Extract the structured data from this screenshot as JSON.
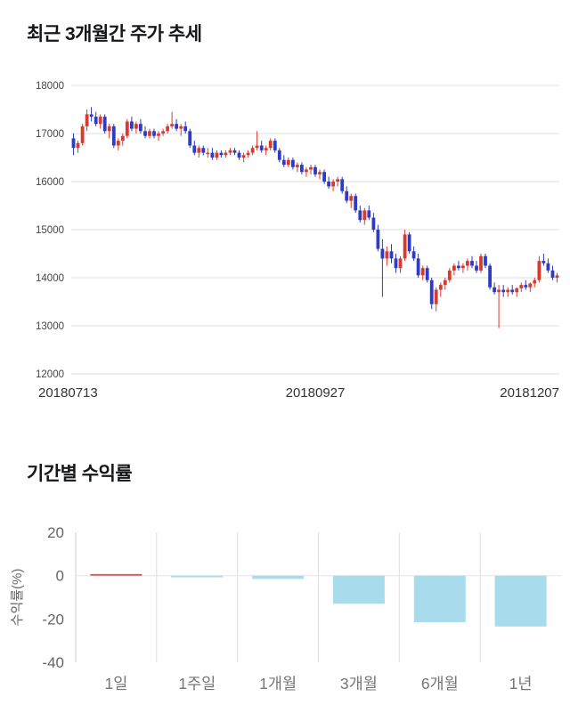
{
  "chart_data": [
    {
      "type": "candlestick",
      "title": "최근 3개월간 주가 추세",
      "ylim": [
        12000,
        18000
      ],
      "y_ticks": [
        18000,
        17000,
        16000,
        15000,
        14000,
        13000,
        12000
      ],
      "x_tick_labels": [
        "20180713",
        "20180927",
        "20181207"
      ],
      "up_color": "#d93a2e",
      "down_color": "#2d3bc5",
      "grid_color": "#dddddd",
      "candles_ohlc": [
        [
          16900,
          17000,
          16550,
          16700
        ],
        [
          16700,
          16850,
          16600,
          16800
        ],
        [
          16800,
          17200,
          16750,
          17150
        ],
        [
          17150,
          17500,
          17050,
          17400
        ],
        [
          17400,
          17550,
          17250,
          17350
        ],
        [
          17350,
          17450,
          17150,
          17200
        ],
        [
          17200,
          17400,
          17100,
          17350
        ],
        [
          17350,
          17400,
          17000,
          17050
        ],
        [
          17050,
          17200,
          16900,
          17150
        ],
        [
          17150,
          17200,
          16700,
          16750
        ],
        [
          16750,
          16900,
          16650,
          16850
        ],
        [
          16850,
          17000,
          16750,
          16950
        ],
        [
          16950,
          17300,
          16900,
          17250
        ],
        [
          17250,
          17350,
          17050,
          17100
        ],
        [
          17100,
          17250,
          17000,
          17200
        ],
        [
          17200,
          17300,
          17000,
          17050
        ],
        [
          17050,
          17150,
          16900,
          16950
        ],
        [
          16950,
          17100,
          16900,
          17050
        ],
        [
          17050,
          17100,
          16900,
          16950
        ],
        [
          16950,
          17050,
          16850,
          17000
        ],
        [
          17000,
          17100,
          16950,
          17050
        ],
        [
          17050,
          17200,
          17000,
          17150
        ],
        [
          17150,
          17450,
          17100,
          17200
        ],
        [
          17200,
          17300,
          17050,
          17100
        ],
        [
          17100,
          17200,
          16950,
          17150
        ],
        [
          17150,
          17250,
          17000,
          17050
        ],
        [
          17050,
          17100,
          16700,
          16750
        ],
        [
          16750,
          16850,
          16550,
          16600
        ],
        [
          16600,
          16750,
          16500,
          16700
        ],
        [
          16700,
          16750,
          16550,
          16600
        ],
        [
          16600,
          16700,
          16500,
          16600
        ],
        [
          16600,
          16700,
          16450,
          16500
        ],
        [
          16500,
          16650,
          16450,
          16600
        ],
        [
          16600,
          16650,
          16500,
          16550
        ],
        [
          16550,
          16650,
          16500,
          16600
        ],
        [
          16600,
          16700,
          16550,
          16650
        ],
        [
          16650,
          16700,
          16550,
          16600
        ],
        [
          16600,
          16650,
          16450,
          16500
        ],
        [
          16500,
          16600,
          16400,
          16550
        ],
        [
          16550,
          16650,
          16500,
          16600
        ],
        [
          16600,
          16750,
          16550,
          16700
        ],
        [
          16700,
          17050,
          16650,
          16750
        ],
        [
          16750,
          16850,
          16600,
          16650
        ],
        [
          16650,
          16750,
          16550,
          16700
        ],
        [
          16700,
          16900,
          16650,
          16850
        ],
        [
          16850,
          16900,
          16600,
          16650
        ],
        [
          16650,
          16700,
          16400,
          16450
        ],
        [
          16450,
          16550,
          16300,
          16350
        ],
        [
          16350,
          16500,
          16300,
          16450
        ],
        [
          16450,
          16500,
          16250,
          16300
        ],
        [
          16300,
          16400,
          16200,
          16350
        ],
        [
          16350,
          16400,
          16150,
          16200
        ],
        [
          16200,
          16300,
          16100,
          16250
        ],
        [
          16250,
          16350,
          16150,
          16300
        ],
        [
          16300,
          16350,
          16100,
          16150
        ],
        [
          16150,
          16250,
          16050,
          16200
        ],
        [
          16200,
          16250,
          15950,
          16000
        ],
        [
          16000,
          16100,
          15850,
          15900
        ],
        [
          15900,
          16050,
          15800,
          16000
        ],
        [
          16000,
          16100,
          15900,
          16050
        ],
        [
          16050,
          16100,
          15750,
          15800
        ],
        [
          15800,
          15900,
          15550,
          15600
        ],
        [
          15600,
          15750,
          15450,
          15700
        ],
        [
          15700,
          15750,
          15350,
          15400
        ],
        [
          15400,
          15500,
          15150,
          15200
        ],
        [
          15200,
          15450,
          15100,
          15400
        ],
        [
          15400,
          15500,
          15200,
          15250
        ],
        [
          15250,
          15350,
          14950,
          15000
        ],
        [
          15000,
          15100,
          14550,
          14600
        ],
        [
          14600,
          14800,
          13600,
          14400
        ],
        [
          14400,
          14650,
          14250,
          14550
        ],
        [
          14550,
          14700,
          14300,
          14400
        ],
        [
          14400,
          14500,
          14100,
          14200
        ],
        [
          14200,
          14450,
          14100,
          14400
        ],
        [
          14400,
          15000,
          14350,
          14900
        ],
        [
          14900,
          14950,
          14500,
          14550
        ],
        [
          14550,
          14650,
          14350,
          14400
        ],
        [
          14400,
          14500,
          14000,
          14050
        ],
        [
          14050,
          14250,
          13950,
          14200
        ],
        [
          14200,
          14250,
          13900,
          13950
        ],
        [
          13950,
          14000,
          13350,
          13450
        ],
        [
          13450,
          13800,
          13300,
          13750
        ],
        [
          13750,
          13900,
          13600,
          13850
        ],
        [
          13850,
          14000,
          13750,
          13950
        ],
        [
          13950,
          14200,
          13900,
          14150
        ],
        [
          14150,
          14300,
          14050,
          14250
        ],
        [
          14250,
          14350,
          14150,
          14200
        ],
        [
          14200,
          14300,
          14100,
          14250
        ],
        [
          14250,
          14400,
          14150,
          14350
        ],
        [
          14350,
          14450,
          14200,
          14250
        ],
        [
          14250,
          14350,
          14100,
          14150
        ],
        [
          14150,
          14500,
          14100,
          14450
        ],
        [
          14450,
          14500,
          14200,
          14250
        ],
        [
          14250,
          14300,
          13750,
          13800
        ],
        [
          13800,
          13900,
          13650,
          13700
        ],
        [
          13700,
          13850,
          12950,
          13750
        ],
        [
          13750,
          13850,
          13600,
          13700
        ],
        [
          13700,
          13800,
          13600,
          13750
        ],
        [
          13750,
          13850,
          13650,
          13700
        ],
        [
          13700,
          13800,
          13600,
          13780
        ],
        [
          13780,
          13900,
          13700,
          13850
        ],
        [
          13850,
          13950,
          13750,
          13800
        ],
        [
          13800,
          13900,
          13700,
          13880
        ],
        [
          13880,
          14000,
          13800,
          13950
        ],
        [
          13950,
          14450,
          13900,
          14350
        ],
        [
          14350,
          14500,
          14250,
          14300
        ],
        [
          14300,
          14400,
          14100,
          14150
        ],
        [
          14150,
          14250,
          13950,
          14000
        ],
        [
          14000,
          14100,
          13900,
          14050
        ]
      ]
    },
    {
      "type": "bar",
      "title": "기간별 수익률",
      "ylabel": "수익률(%)",
      "ylim": [
        -40,
        20
      ],
      "y_ticks": [
        20,
        0,
        -20,
        -40
      ],
      "categories": [
        "1일",
        "1주일",
        "1개월",
        "3개월",
        "6개월",
        "1년"
      ],
      "values": [
        0.3,
        -0.8,
        -1.5,
        -13,
        -21.5,
        -23.5
      ],
      "positive_color": "#d9534f",
      "negative_color": "#a8dcec",
      "grid_color": "#dddddd",
      "legend": "none"
    }
  ]
}
